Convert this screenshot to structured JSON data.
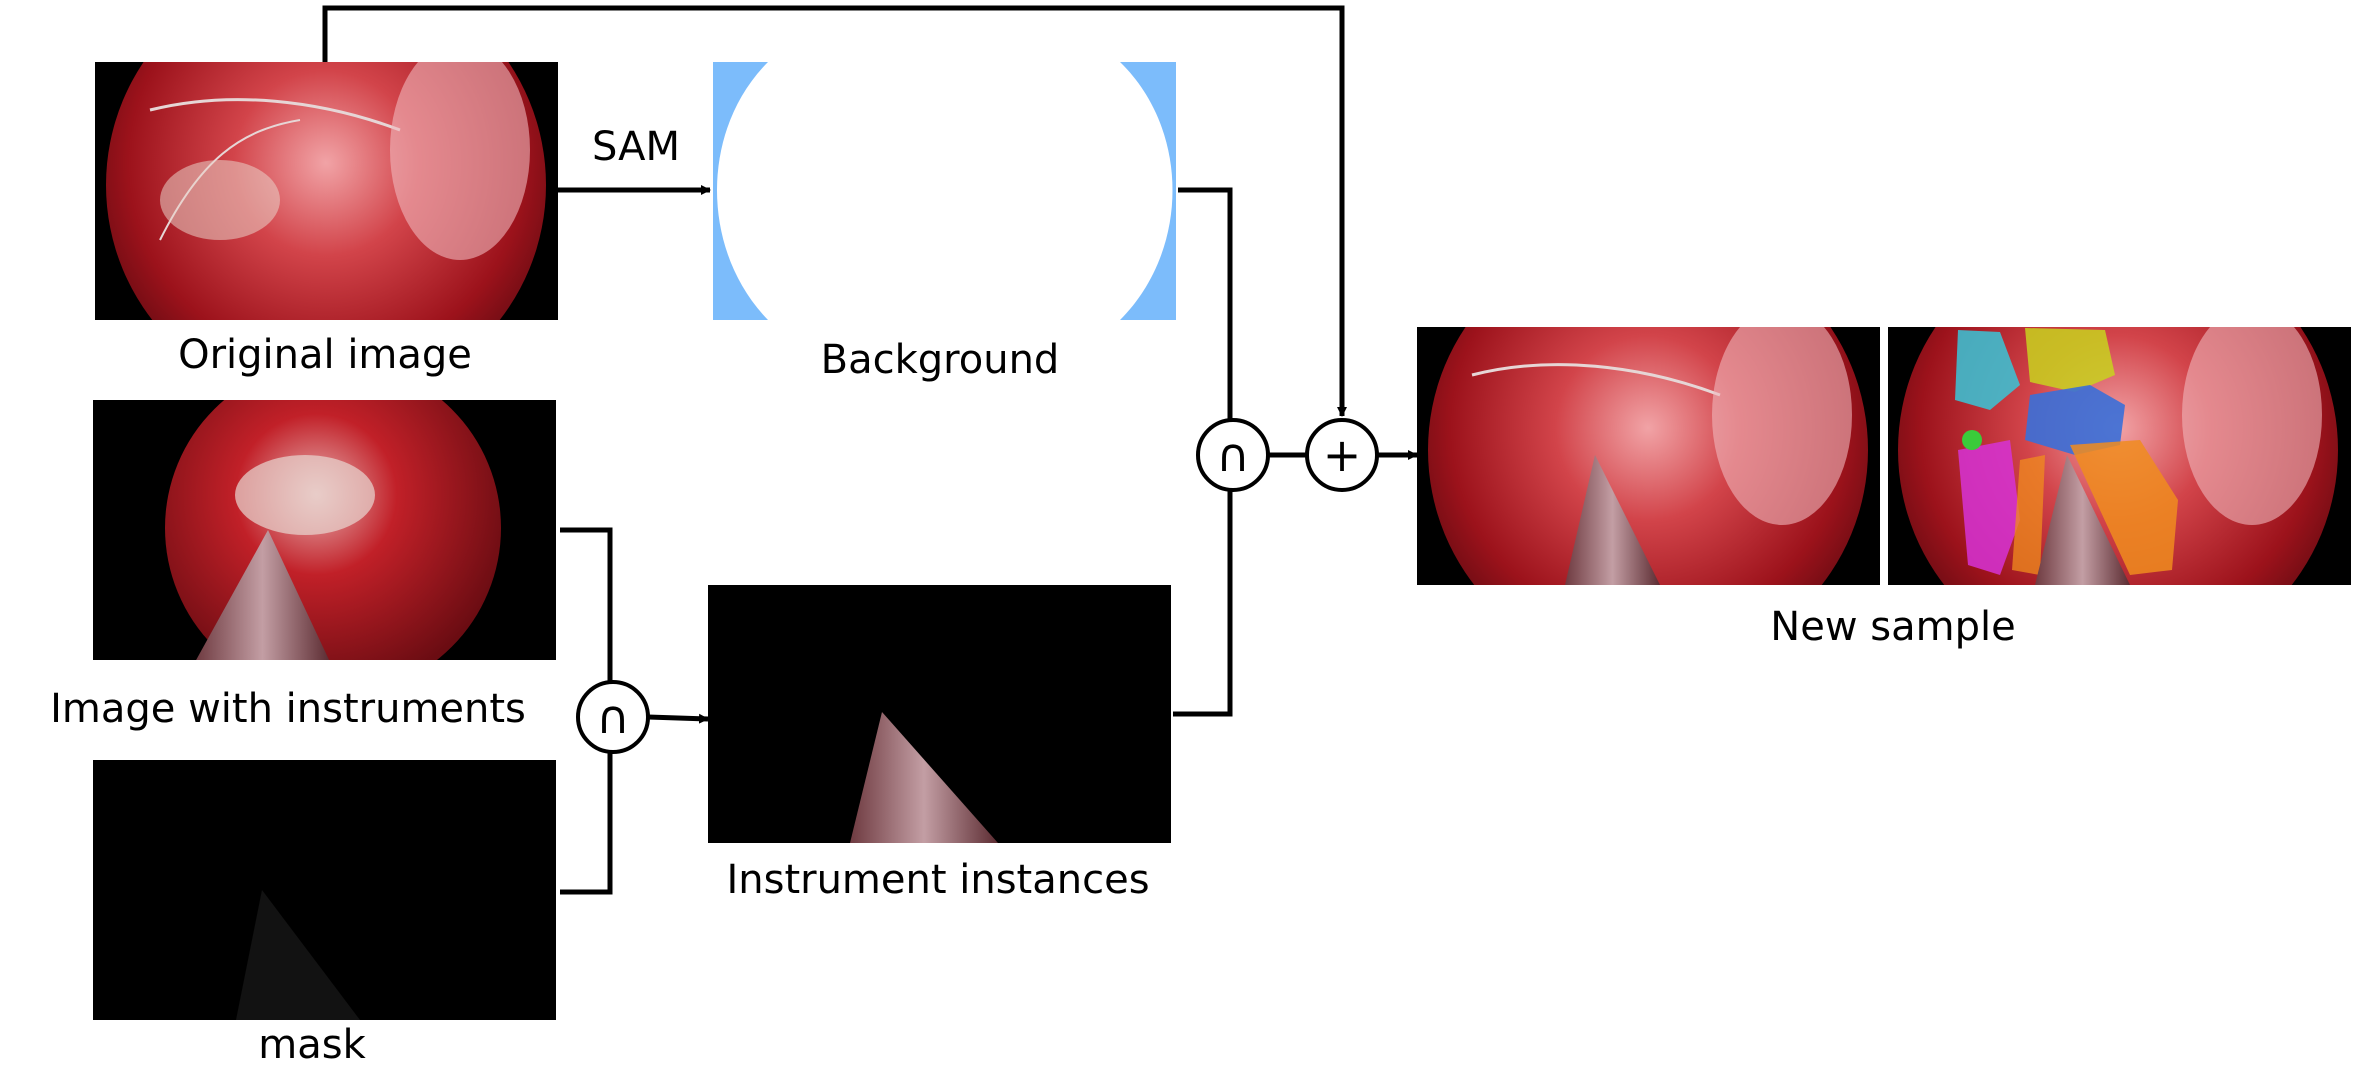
{
  "labels": {
    "original_image": "Original image",
    "sam": "SAM",
    "background": "Background",
    "image_with_instruments": "Image with instruments",
    "mask": "mask",
    "instrument_instances": "Instrument instances",
    "new_sample": "New sample"
  },
  "operators": {
    "intersect_instruments": "∩",
    "intersect_background": "∩",
    "add": "+"
  },
  "colors": {
    "background_edge": "#7cbcfb",
    "tissue": "#b0141e",
    "line": "#000000"
  },
  "segment_colors": [
    "#38c6d8",
    "#c8d21e",
    "#3a6fd8",
    "#d633d6",
    "#f08c1e",
    "#3acb3a"
  ]
}
